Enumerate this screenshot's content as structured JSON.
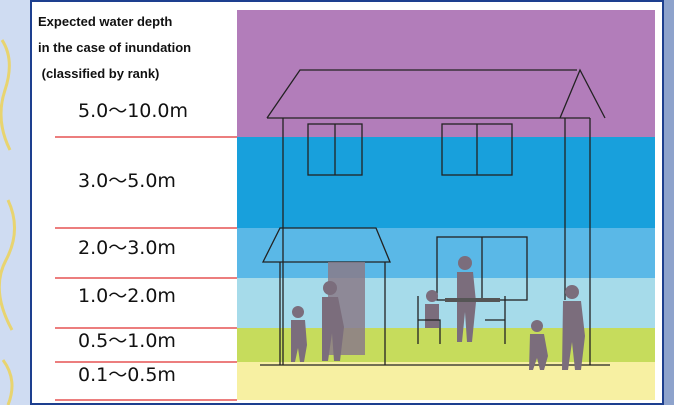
{
  "legend_title": [
    "Expected water depth",
    "in the case of inundation",
    " (classified by rank)"
  ],
  "ranks": [
    {
      "label": "5.0～10.0m"
    },
    {
      "label": "3.0～5.0m"
    },
    {
      "label": "2.0～3.0m"
    },
    {
      "label": "1.0～2.0m"
    },
    {
      "label": "0.5～1.0m"
    },
    {
      "label": "0.1～0.5m"
    }
  ]
}
